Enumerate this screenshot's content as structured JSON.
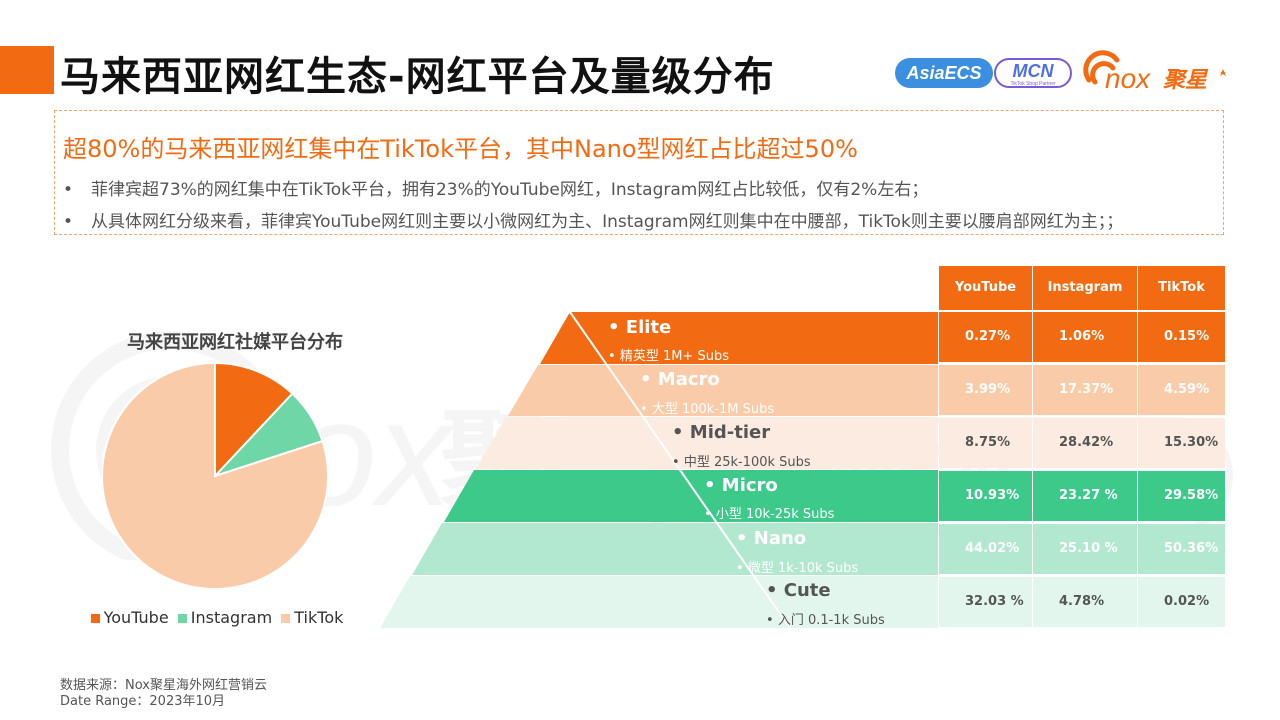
{
  "title": "马来西亚网红生态-网红平台及量级分布",
  "logos": {
    "asiaecs": "AsiaECS",
    "mcn": "MCN",
    "mcn_tagline": "TikTok Shop Partner",
    "nox_latin": "nox",
    "nox_cn": "聚星"
  },
  "summary": {
    "headline": "超80%的马来西亚网红集中在TikTok平台，其中Nano型网红占比超过50%",
    "bullets": [
      "菲律宾超73%的网红集中在TikTok平台，拥有23%的YouTube网红，Instagram网红占比较低，仅有2%左右；",
      "从具体网红分级来看，菲律宾YouTube网红则主要以小微网红为主、Instagram网红则集中在中腰部，TikTok则主要以腰肩部网红为主；；"
    ]
  },
  "pie": {
    "title": "马来西亚网红社媒平台分布",
    "legend": [
      "YouTube",
      "Instagram",
      "TikTok"
    ],
    "colors": [
      "#f26b12",
      "#6fd6a8",
      "#f9cba8"
    ]
  },
  "chart_data": {
    "type": "pie",
    "title": "马来西亚网红社媒平台分布",
    "categories": [
      "YouTube",
      "Instagram",
      "TikTok"
    ],
    "values": [
      12,
      8,
      80
    ],
    "legend_position": "bottom"
  },
  "tiers": [
    {
      "name": "Elite",
      "sub": "精英型 1M+ Subs"
    },
    {
      "name": "Macro",
      "sub": "大型 100k-1M Subs"
    },
    {
      "name": "Mid-tier",
      "sub": "中型 25k-100k Subs"
    },
    {
      "name": "Micro",
      "sub": "小型 10k-25k Subs"
    },
    {
      "name": "Nano",
      "sub": "微型 1k-10k Subs"
    },
    {
      "name": "Cute",
      "sub": "入门 0.1-1k Subs"
    }
  ],
  "table": {
    "headers": [
      "YouTube",
      "Instagram",
      "TikTok"
    ],
    "rows": [
      [
        "0.27%",
        "1.06%",
        "0.15%"
      ],
      [
        "3.99%",
        "17.37%",
        "4.59%"
      ],
      [
        "8.75%",
        "28.42%",
        "15.30%"
      ],
      [
        "10.93%",
        "23.27 %",
        "29.58%"
      ],
      [
        "44.02%",
        "25.10 %",
        "50.36%"
      ],
      [
        "32.03 %",
        "4.78%",
        "0.02%"
      ]
    ]
  },
  "source": {
    "line1": "数据来源：Nox聚星海外网红营销云",
    "line2": "Date Range：2023年10月"
  }
}
